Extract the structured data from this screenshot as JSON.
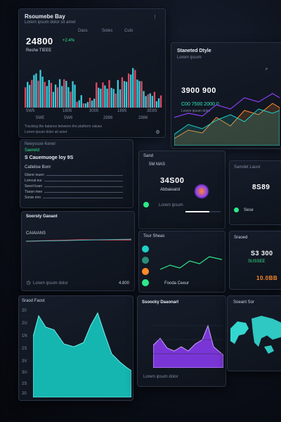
{
  "colors": {
    "teal": "#1fd1c7",
    "cyan": "#3ee0f0",
    "purple": "#8a3df0",
    "green": "#2ee88a",
    "orange": "#ff8a2a",
    "red": "#ff4d6a"
  },
  "p1": {
    "title": "Rsoumebe Bay",
    "subtitle": "Lorem ipsum dolor sit amet",
    "value": "24800",
    "badge": "+2.4%",
    "label": "Reshe TIEEE",
    "ticks": [
      "5W5",
      "1805",
      "3005",
      "1895",
      "3E8S"
    ],
    "tick_row2": [
      "5ME",
      "5W6",
      "2896",
      "2886"
    ],
    "footer1": "Tracking the balance between the platform values",
    "footer2": "Lorem ipsum dolor sit amet",
    "menu": [
      "Dass",
      "Sotes",
      "Cuts"
    ]
  },
  "p2": {
    "title": "Staneted Dtyle",
    "subtitle": "Lorem ipsum",
    "value": "3900 900",
    "caption": "C00 7500 2000 0",
    "caption2": "Lorem ipsum dolor"
  },
  "p3": {
    "title": "Neeyssoe Kenel",
    "subtitle": "Saeretd",
    "heading": "S Cauemuoge loy 9S",
    "sub": "Catlelise Bonr",
    "rows": [
      "Gfarer ieuen",
      "Lomcal eur",
      "Seeol loaer",
      "Tiaran mee",
      "Sorae eno"
    ]
  },
  "p4": {
    "title": "Sand",
    "ticker": "5M MAS",
    "value": "34S00",
    "label": "Abbaieatol",
    "footer": "Lorem ipsum"
  },
  "p5": {
    "title": "Samdet Lauor",
    "value": "8S89",
    "badge": "Sese"
  },
  "p6": {
    "title": "Soorsty Gaoaot",
    "sub": "CAIAIANS",
    "footer_left": "Lorem ipsum dolor",
    "footer_right": "4.800"
  },
  "p7": {
    "title": "Tour Sheas",
    "footer": "Fooda Ceeur"
  },
  "p8": {
    "title": "Sraoed",
    "value": "S3 300",
    "badge": "SUSSEE",
    "value2": "10.0BB"
  },
  "p9": {
    "title": "Sraod Faost",
    "yticks": [
      "20",
      "2U",
      "1N",
      "2S",
      "3V",
      "3U",
      "2S",
      "20"
    ]
  },
  "p10": {
    "title": "Ssoocky Daaonarl",
    "footer": "Lorem ipsum dolor"
  },
  "p11": {
    "title": "Soeant Sor"
  }
}
